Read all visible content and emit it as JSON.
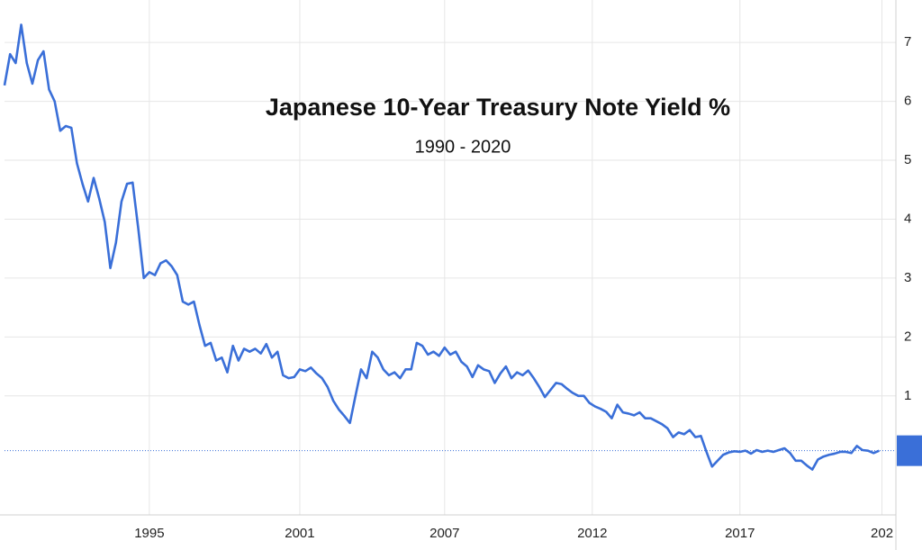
{
  "chart_data": {
    "type": "line",
    "title": "Japanese 10-Year Treasury Note Yield %",
    "subtitle": "1990 - 2020",
    "color": "#3a6fd8",
    "grid": true,
    "xlim": [
      1990,
      2022
    ],
    "ylim": [
      -1.02,
      7.72
    ],
    "yticks": [
      1,
      2,
      3,
      4,
      5,
      6,
      7
    ],
    "xticks": [
      {
        "value": 1995.2,
        "label": "1995"
      },
      {
        "value": 2000.6,
        "label": "2001"
      },
      {
        "value": 2005.8,
        "label": "2007"
      },
      {
        "value": 2011.1,
        "label": "2012"
      },
      {
        "value": 2016.4,
        "label": "2017"
      },
      {
        "value": 2021.5,
        "label": "202"
      }
    ],
    "x": [
      1990.0,
      1990.2,
      1990.4,
      1990.6,
      1990.8,
      1991.0,
      1991.2,
      1991.4,
      1991.6,
      1991.8,
      1992.0,
      1992.2,
      1992.4,
      1992.6,
      1992.8,
      1993.0,
      1993.2,
      1993.4,
      1993.6,
      1993.8,
      1994.0,
      1994.2,
      1994.4,
      1994.6,
      1994.8,
      1995.0,
      1995.2,
      1995.4,
      1995.6,
      1995.8,
      1996.0,
      1996.2,
      1996.4,
      1996.6,
      1996.8,
      1997.0,
      1997.2,
      1997.4,
      1997.6,
      1997.8,
      1998.0,
      1998.2,
      1998.4,
      1998.6,
      1998.8,
      1999.0,
      1999.2,
      1999.4,
      1999.6,
      1999.8,
      2000.0,
      2000.2,
      2000.4,
      2000.6,
      2000.8,
      2001.0,
      2001.2,
      2001.4,
      2001.6,
      2001.8,
      2002.0,
      2002.2,
      2002.4,
      2002.6,
      2002.8,
      2003.0,
      2003.2,
      2003.4,
      2003.6,
      2003.8,
      2004.0,
      2004.2,
      2004.4,
      2004.6,
      2004.8,
      2005.0,
      2005.2,
      2005.4,
      2005.6,
      2005.8,
      2006.0,
      2006.2,
      2006.4,
      2006.6,
      2006.8,
      2007.0,
      2007.2,
      2007.4,
      2007.6,
      2007.8,
      2008.0,
      2008.2,
      2008.4,
      2008.6,
      2008.8,
      2009.0,
      2009.2,
      2009.4,
      2009.6,
      2009.8,
      2010.0,
      2010.2,
      2010.4,
      2010.6,
      2010.8,
      2011.0,
      2011.2,
      2011.4,
      2011.6,
      2011.8,
      2012.0,
      2012.2,
      2012.4,
      2012.6,
      2012.8,
      2013.0,
      2013.2,
      2013.4,
      2013.6,
      2013.8,
      2014.0,
      2014.2,
      2014.4,
      2014.6,
      2014.8,
      2015.0,
      2015.2,
      2015.4,
      2015.6,
      2015.8,
      2016.0,
      2016.2,
      2016.4,
      2016.6,
      2016.8,
      2017.0,
      2017.2,
      2017.4,
      2017.6,
      2017.8,
      2018.0,
      2018.2,
      2018.4,
      2018.6,
      2018.8,
      2019.0,
      2019.2,
      2019.4,
      2019.6,
      2019.8,
      2020.0,
      2020.2,
      2020.4,
      2020.6,
      2020.8,
      2021.0,
      2021.2,
      2021.4
    ],
    "values": [
      6.27,
      6.8,
      6.65,
      7.3,
      6.65,
      6.3,
      6.7,
      6.85,
      6.2,
      6.0,
      5.5,
      5.58,
      5.55,
      4.95,
      4.6,
      4.3,
      4.7,
      4.35,
      3.95,
      3.17,
      3.6,
      4.3,
      4.6,
      4.62,
      3.85,
      3.0,
      3.1,
      3.05,
      3.25,
      3.3,
      3.2,
      3.05,
      2.6,
      2.55,
      2.6,
      2.2,
      1.85,
      1.9,
      1.6,
      1.65,
      1.4,
      1.85,
      1.6,
      1.8,
      1.75,
      1.8,
      1.72,
      1.88,
      1.65,
      1.75,
      1.35,
      1.3,
      1.32,
      1.45,
      1.42,
      1.48,
      1.38,
      1.3,
      1.15,
      0.92,
      0.77,
      0.66,
      0.54,
      1.0,
      1.45,
      1.3,
      1.75,
      1.65,
      1.45,
      1.35,
      1.4,
      1.3,
      1.45,
      1.45,
      1.9,
      1.85,
      1.7,
      1.75,
      1.68,
      1.82,
      1.7,
      1.75,
      1.58,
      1.5,
      1.32,
      1.52,
      1.45,
      1.42,
      1.22,
      1.38,
      1.5,
      1.3,
      1.4,
      1.35,
      1.43,
      1.3,
      1.15,
      0.98,
      1.1,
      1.22,
      1.2,
      1.12,
      1.05,
      1.0,
      1.0,
      0.88,
      0.82,
      0.78,
      0.73,
      0.62,
      0.85,
      0.72,
      0.7,
      0.67,
      0.72,
      0.62,
      0.62,
      0.57,
      0.52,
      0.45,
      0.3,
      0.38,
      0.35,
      0.42,
      0.3,
      0.32,
      0.05,
      -0.2,
      -0.1,
      0.0,
      0.04,
      0.06,
      0.05,
      0.07,
      0.02,
      0.08,
      0.05,
      0.07,
      0.05,
      0.08,
      0.11,
      0.03,
      -0.1,
      -0.1,
      -0.18,
      -0.25,
      -0.08,
      -0.03,
      0.0,
      0.02,
      0.05,
      0.05,
      0.03,
      0.15,
      0.08,
      0.07,
      0.03,
      0.07
    ]
  }
}
